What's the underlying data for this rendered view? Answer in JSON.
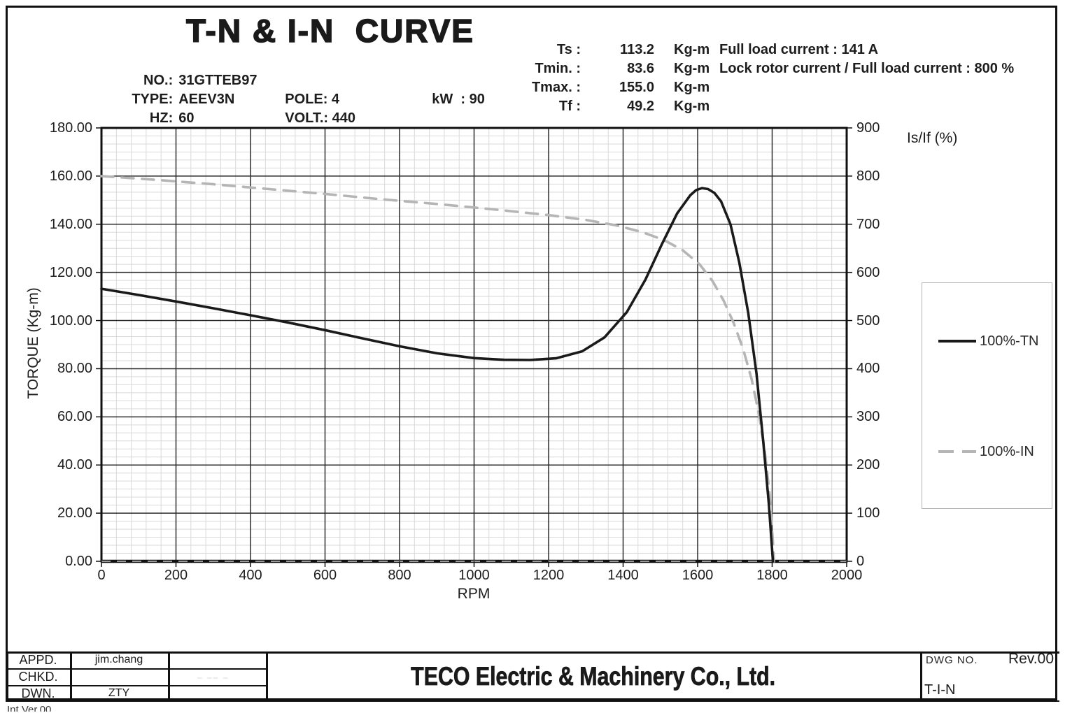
{
  "header": {
    "title": "T-N & I-N  CURVE",
    "specs": {
      "no_label": "NO.:",
      "no_value": "31GTTEB97",
      "type_label": "TYPE:",
      "type_value": "AEEV3N",
      "pole_label": "POLE:",
      "pole_value": "4",
      "kw_label": "kW  :",
      "kw_value": "90",
      "hz_label": "HZ:",
      "hz_value": "60",
      "volt_label": "VOLT.:",
      "volt_value": "440"
    },
    "torques": [
      {
        "label": "Ts :",
        "value": "113.2",
        "unit": "Kg-m"
      },
      {
        "label": "Tmin. :",
        "value": "83.6",
        "unit": "Kg-m"
      },
      {
        "label": "Tmax. :",
        "value": "155.0",
        "unit": "Kg-m"
      },
      {
        "label": "Tf :",
        "value": "49.2",
        "unit": "Kg-m"
      }
    ],
    "current_lines": [
      "Full load current : 141 A",
      "Lock rotor current / Full load current : 800 %"
    ]
  },
  "chart_data": {
    "type": "line",
    "title": "T-N & I-N CURVE",
    "xlabel": "RPM",
    "x_range": [
      0,
      2000
    ],
    "x_tick_step": 200,
    "x_minor_per_major": 5,
    "y_left": {
      "label": "TORQUE (Kg-m)",
      "range": [
        0,
        180
      ],
      "tick_step": 20,
      "tick_decimals": 2,
      "minor_per_major": 6
    },
    "y_right": {
      "label": "Is/If (%)",
      "range": [
        0,
        900
      ],
      "tick_step": 100
    },
    "grid": "major+minor",
    "legend_position": "right",
    "baseline_dashed": true,
    "colors": {
      "tn": "#1a1a1a",
      "in": "#b5b5b5",
      "grid_major": "#2b2b2b",
      "grid_minor": "#d9d9d9",
      "border": "#101010"
    },
    "series": [
      {
        "name": "100%-TN",
        "axis": "left",
        "style": "solid",
        "color": "#1a1a1a",
        "points": [
          [
            0,
            113.2
          ],
          [
            100,
            110.6
          ],
          [
            200,
            107.9
          ],
          [
            300,
            105.1
          ],
          [
            400,
            102.2
          ],
          [
            500,
            99.2
          ],
          [
            600,
            96.0
          ],
          [
            700,
            92.6
          ],
          [
            800,
            89.3
          ],
          [
            900,
            86.4
          ],
          [
            1000,
            84.4
          ],
          [
            1080,
            83.7
          ],
          [
            1150,
            83.6
          ],
          [
            1220,
            84.3
          ],
          [
            1290,
            87.2
          ],
          [
            1350,
            93.0
          ],
          [
            1410,
            103.5
          ],
          [
            1460,
            117.0
          ],
          [
            1505,
            132.0
          ],
          [
            1545,
            144.5
          ],
          [
            1580,
            152.0
          ],
          [
            1596,
            154.2
          ],
          [
            1612,
            155.0
          ],
          [
            1628,
            154.6
          ],
          [
            1645,
            153.0
          ],
          [
            1663,
            149.5
          ],
          [
            1688,
            140.0
          ],
          [
            1712,
            124.0
          ],
          [
            1736,
            103.0
          ],
          [
            1758,
            78.0
          ],
          [
            1776,
            50.0
          ],
          [
            1791,
            24.0
          ],
          [
            1802,
            0.0
          ]
        ]
      },
      {
        "name": "100%-IN",
        "axis": "right",
        "style": "dashed",
        "color": "#b5b5b5",
        "points": [
          [
            0,
            800
          ],
          [
            150,
            792
          ],
          [
            300,
            783
          ],
          [
            450,
            773
          ],
          [
            600,
            763
          ],
          [
            750,
            752
          ],
          [
            900,
            742
          ],
          [
            1050,
            731
          ],
          [
            1200,
            719
          ],
          [
            1300,
            709
          ],
          [
            1380,
            698
          ],
          [
            1450,
            684
          ],
          [
            1510,
            667
          ],
          [
            1560,
            646
          ],
          [
            1605,
            617
          ],
          [
            1640,
            582
          ],
          [
            1670,
            541
          ],
          [
            1697,
            494
          ],
          [
            1722,
            441
          ],
          [
            1745,
            378
          ],
          [
            1764,
            308
          ],
          [
            1780,
            230
          ],
          [
            1793,
            140
          ],
          [
            1802,
            40
          ],
          [
            1805,
            0
          ]
        ]
      }
    ]
  },
  "titleblock": {
    "rows": [
      {
        "label": "APPD.",
        "name": "jim.chang",
        "extra": ""
      },
      {
        "label": "CHKD.",
        "name": "",
        "extra": ""
      },
      {
        "label": "DWN.",
        "name": "ZTY",
        "extra": ""
      }
    ],
    "company": "TECO Electric & Machinery Co., Ltd.",
    "dwg_label": "DWG NO.",
    "rev": "Rev.00",
    "dwg_no": "T-I-N",
    "faint_marks": "– –– –",
    "bottom_note": "Int.Ver.00"
  }
}
